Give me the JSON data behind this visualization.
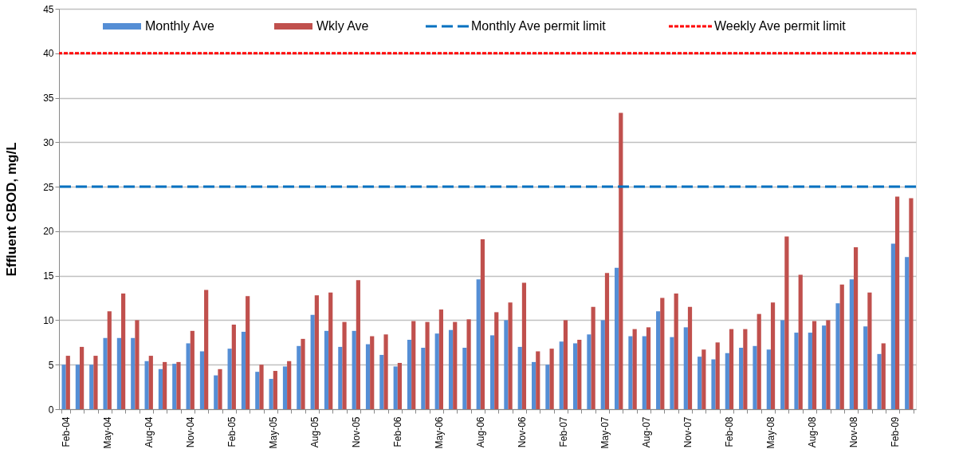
{
  "chart_data": {
    "type": "bar",
    "ylabel": "Effluent CBOD, mg/L",
    "categories": [
      "Feb-04",
      null,
      null,
      "May-04",
      null,
      null,
      "Aug-04",
      null,
      null,
      "Nov-04",
      null,
      null,
      "Feb-05",
      null,
      null,
      "May-05",
      null,
      null,
      "Aug-05",
      null,
      null,
      "Nov-05",
      null,
      null,
      "Feb-06",
      null,
      null,
      "May-06",
      null,
      null,
      "Aug-06",
      null,
      null,
      "Nov-06",
      null,
      null,
      "Feb-07",
      null,
      null,
      "May-07",
      null,
      null,
      "Aug-07",
      null,
      null,
      "Nov-07",
      null,
      null,
      "Feb-08",
      null,
      null,
      "May-08",
      null,
      null,
      "Aug-08",
      null,
      null,
      "Nov-08",
      null,
      null,
      "Feb-09",
      null
    ],
    "series": [
      {
        "name": "Monthly Ave",
        "color": "#558ed5",
        "values": [
          5,
          5,
          5,
          8,
          8,
          8,
          5.4,
          4.5,
          5.1,
          7.4,
          6.5,
          3.8,
          6.8,
          8.7,
          4.2,
          3.4,
          4.8,
          7.1,
          10.6,
          8.8,
          7,
          8.8,
          7.3,
          6.1,
          4.8,
          7.8,
          6.9,
          8.5,
          8.9,
          6.9,
          14.6,
          8.3,
          10,
          7,
          5.3,
          5,
          7.6,
          7.4,
          8.4,
          10,
          15.9,
          8.2,
          8.2,
          11,
          8.1,
          9.2,
          5.9,
          5.6,
          6.3,
          6.9,
          7.1,
          6.7,
          10,
          8.6,
          8.6,
          9.4,
          11.9,
          14.6,
          9.3,
          6.2,
          18.6,
          17.1
        ]
      },
      {
        "name": "Wkly Ave",
        "color": "#c0504d",
        "values": [
          6,
          7,
          6,
          11,
          13,
          10,
          6,
          5.3,
          5.3,
          8.8,
          13.4,
          4.5,
          9.5,
          12.7,
          5,
          4.3,
          5.4,
          7.9,
          12.8,
          13.1,
          9.8,
          14.5,
          8.2,
          8.4,
          5.2,
          9.9,
          9.8,
          11.2,
          9.8,
          10.1,
          19.1,
          10.9,
          12,
          14.2,
          6.5,
          6.8,
          10,
          7.8,
          11.5,
          15.3,
          33.3,
          9,
          9.2,
          12.5,
          13,
          11.5,
          6.7,
          7.5,
          9,
          9,
          10.7,
          12,
          19.4,
          15.1,
          9.9,
          10,
          14,
          18.2,
          13.1,
          7.4,
          23.9,
          23.7
        ]
      }
    ],
    "ref_lines": [
      {
        "axis": "y",
        "value": 25,
        "label": "Monthly Ave permit limit",
        "color": "#0070c0",
        "line_style": "dashed"
      },
      {
        "axis": "y",
        "value": 40,
        "label": "Weekly Ave permit limit",
        "color": "#ff0000",
        "line_style": "dotted"
      }
    ],
    "ylim": [
      0,
      45
    ],
    "yticks": [
      0,
      5,
      10,
      15,
      20,
      25,
      30,
      35,
      40,
      45
    ],
    "grid": "y",
    "legend": "top"
  }
}
